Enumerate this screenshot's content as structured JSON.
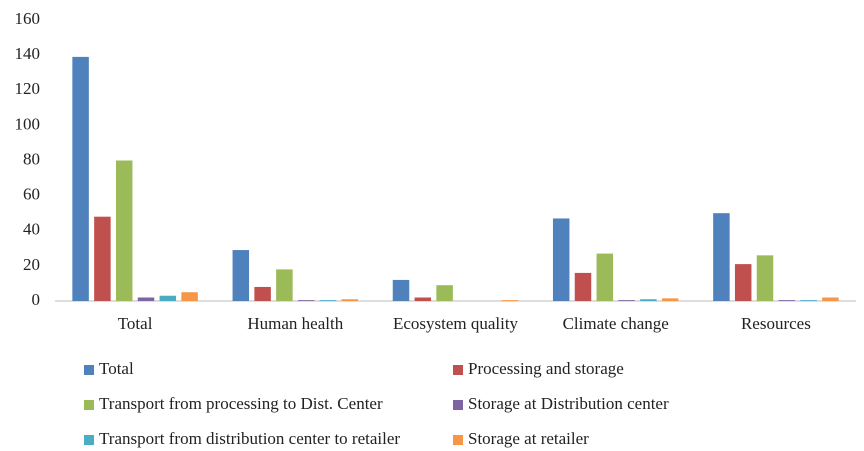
{
  "chart_data": {
    "type": "bar",
    "categories": [
      "Total",
      "Human health",
      "Ecosystem quality",
      "Climate change",
      "Resources"
    ],
    "series": [
      {
        "name": "Total",
        "color": "#4f81bd",
        "values": [
          139,
          29,
          12,
          47,
          50
        ]
      },
      {
        "name": "Processing and storage",
        "color": "#c0504d",
        "values": [
          48,
          8,
          2,
          16,
          21
        ]
      },
      {
        "name": "Transport from processing to Dist. Center",
        "color": "#9bbb59",
        "values": [
          80,
          18,
          9,
          27,
          26
        ]
      },
      {
        "name": "Storage at Distribution center",
        "color": "#8064a2",
        "values": [
          2,
          0.5,
          0,
          0.5,
          0.5
        ]
      },
      {
        "name": "Transport from distribution center to retailer",
        "color": "#4bacc6",
        "values": [
          3,
          0.5,
          0,
          1,
          0.5
        ]
      },
      {
        "name": "Storage at retailer",
        "color": "#f79646",
        "values": [
          5,
          1,
          0.5,
          1.5,
          2
        ]
      }
    ],
    "ylim": [
      0,
      160
    ],
    "yticks": [
      0,
      20,
      40,
      60,
      80,
      100,
      120,
      140,
      160
    ],
    "grid": false,
    "legend": "bottom"
  }
}
